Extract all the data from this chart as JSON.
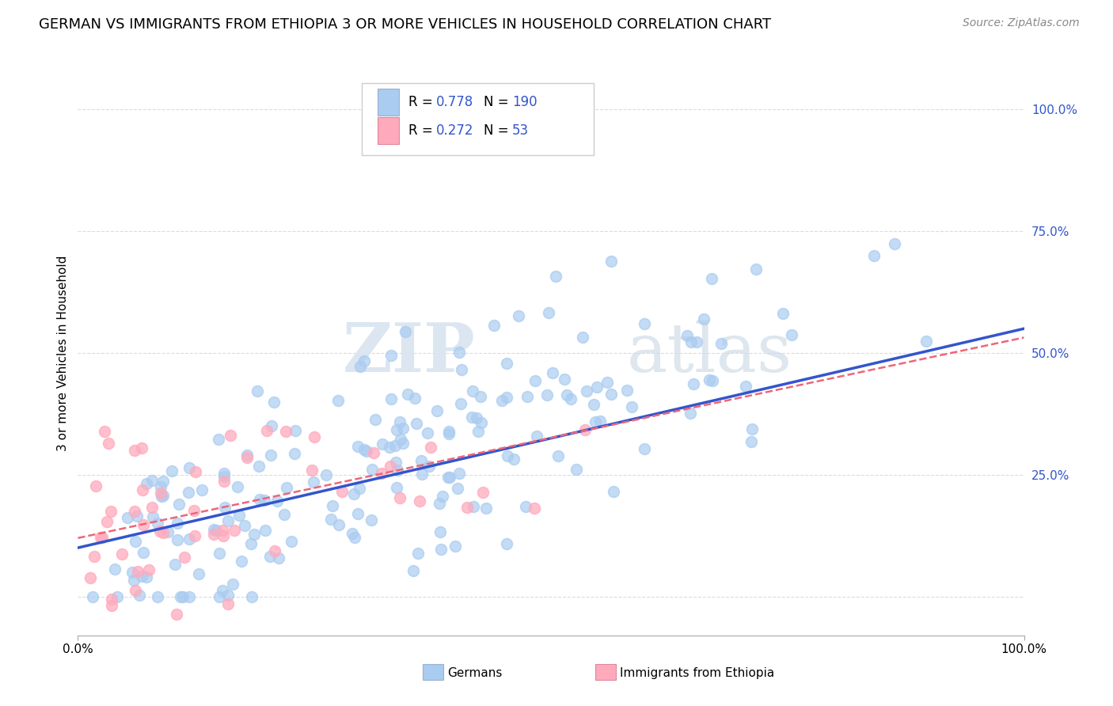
{
  "title": "GERMAN VS IMMIGRANTS FROM ETHIOPIA 3 OR MORE VEHICLES IN HOUSEHOLD CORRELATION CHART",
  "source": "Source: ZipAtlas.com",
  "ylabel": "3 or more Vehicles in Household",
  "ytick_positions": [
    0.0,
    0.25,
    0.5,
    0.75,
    1.0
  ],
  "ytick_labels": [
    "",
    "25.0%",
    "50.0%",
    "75.0%",
    "100.0%"
  ],
  "xlim": [
    0.0,
    1.0
  ],
  "ylim": [
    -0.08,
    1.08
  ],
  "german_R": 0.778,
  "german_N": 190,
  "ethiopia_R": 0.272,
  "ethiopia_N": 53,
  "german_color": "#aaccf0",
  "ethiopia_color": "#ffaabc",
  "german_line_color": "#3355cc",
  "ethiopia_line_color": "#ee6677",
  "legend_label_german": "Germans",
  "legend_label_ethiopia": "Immigrants from Ethiopia",
  "watermark_zip": "ZIP",
  "watermark_atlas": "atlas",
  "background_color": "#ffffff",
  "grid_color": "#cccccc",
  "title_fontsize": 13,
  "axis_label_fontsize": 11,
  "legend_fontsize": 12,
  "german_seed": 12,
  "ethiopia_seed": 99
}
